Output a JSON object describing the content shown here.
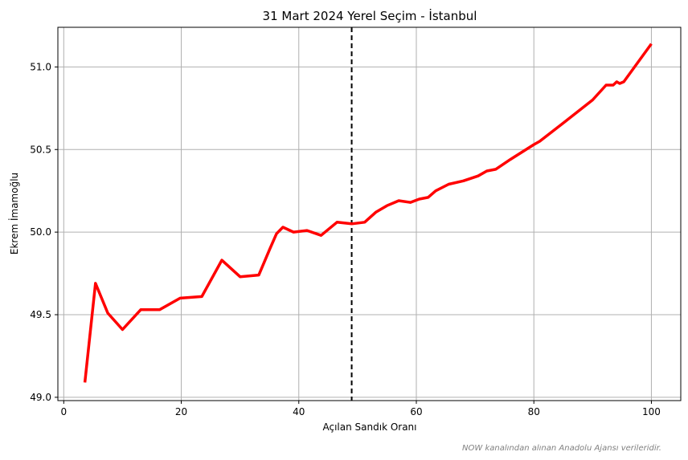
{
  "chart_data": {
    "type": "line",
    "title": "31 Mart 2024 Yerel Seçim - İstanbul",
    "xlabel": "Açılan Sandık Oranı",
    "ylabel": "Ekrem İmamoğlu",
    "xlim": [
      -1,
      105
    ],
    "ylim": [
      48.98,
      51.24
    ],
    "xticks": [
      0,
      20,
      40,
      60,
      80,
      100
    ],
    "xtick_labels": [
      "0",
      "20",
      "40",
      "60",
      "80",
      "100"
    ],
    "yticks": [
      49.0,
      49.5,
      50.0,
      50.5,
      51.0
    ],
    "ytick_labels": [
      "49.0",
      "49.5",
      "50.0",
      "50.5",
      "51.0"
    ],
    "grid": true,
    "vline": {
      "x": 49,
      "style": "dashed",
      "color": "#000000"
    },
    "caption": "NOW kanalından alınan Anadolu Ajansı verileridir.",
    "series": [
      {
        "color": "#ff0000",
        "x": [
          3.6,
          5.4,
          7.5,
          10,
          13.1,
          16.3,
          19.8,
          23.5,
          26.9,
          30,
          33.2,
          35.1,
          36.2,
          37.3,
          39.1,
          41.4,
          43.8,
          46.5,
          49,
          51.2,
          53.1,
          55,
          57,
          59,
          60.5,
          62,
          63.3,
          65.5,
          68,
          70.5,
          72,
          73.5,
          76,
          80,
          81,
          85,
          90,
          92.3,
          93.5,
          94.1,
          94.6,
          95.3,
          100
        ],
        "y": [
          49.09,
          49.69,
          49.51,
          49.41,
          49.53,
          49.53,
          49.6,
          49.61,
          49.83,
          49.73,
          49.74,
          49.9,
          49.99,
          50.03,
          50.0,
          50.01,
          49.98,
          50.06,
          50.05,
          50.06,
          50.12,
          50.16,
          50.19,
          50.18,
          50.2,
          50.21,
          50.25,
          50.29,
          50.31,
          50.34,
          50.37,
          50.38,
          50.44,
          50.53,
          50.55,
          50.66,
          50.8,
          50.89,
          50.89,
          50.91,
          50.9,
          50.91,
          51.14
        ]
      }
    ]
  }
}
